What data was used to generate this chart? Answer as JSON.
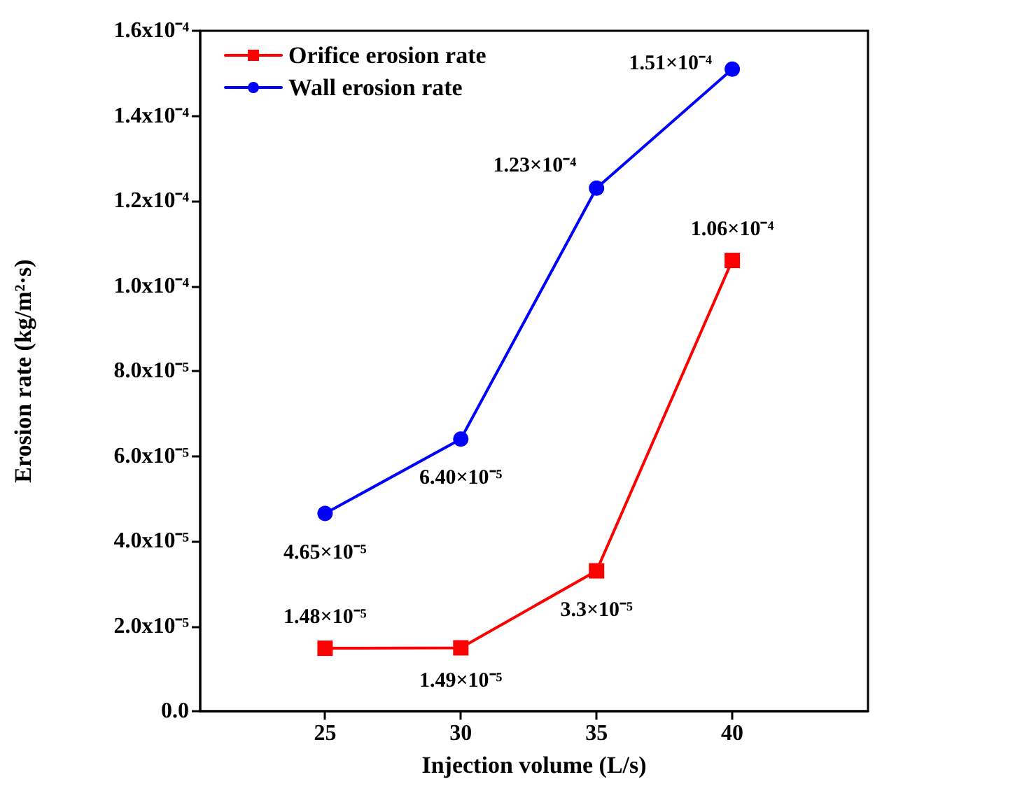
{
  "chart_data": {
    "type": "line",
    "xlabel": "Injection volume (L/s)",
    "ylabel": "Erosion rate (kg/m²·s)",
    "x": [
      25,
      30,
      35,
      40
    ],
    "xlim": [
      20.4,
      45
    ],
    "xticks": [
      25,
      30,
      35,
      40
    ],
    "ylim": [
      0,
      0.00016
    ],
    "yticks": [
      {
        "value": 0,
        "label": "0.0"
      },
      {
        "value": 2e-05,
        "label": "2.0x10⁻⁵"
      },
      {
        "value": 4e-05,
        "label": "4.0x10⁻⁵"
      },
      {
        "value": 6e-05,
        "label": "6.0x10⁻⁵"
      },
      {
        "value": 8e-05,
        "label": "8.0x10⁻⁵"
      },
      {
        "value": 0.0001,
        "label": "1.0x10⁻⁴"
      },
      {
        "value": 0.00012,
        "label": "1.2x10⁻⁴"
      },
      {
        "value": 0.00014,
        "label": "1.4x10⁻⁴"
      },
      {
        "value": 0.00016,
        "label": "1.6x10⁻⁴"
      }
    ],
    "series": [
      {
        "name": "Orifice erosion rate",
        "color": "#ff0000",
        "marker": "square",
        "values": [
          1.48e-05,
          1.49e-05,
          3.3e-05,
          0.000106
        ],
        "value_labels": [
          "1.48×10⁻⁵",
          "1.49×10⁻⁵",
          "3.3×10⁻⁵",
          "1.06×10⁻⁴"
        ]
      },
      {
        "name": "Wall erosion rate",
        "color": "#0000ff",
        "marker": "circle",
        "values": [
          4.65e-05,
          6.4e-05,
          0.000123,
          0.000151
        ],
        "value_labels": [
          "4.65×10⁻⁵",
          "6.40×10⁻⁵",
          "1.23×10⁻⁴",
          "1.51×10⁻⁴"
        ]
      }
    ],
    "legend": "top left",
    "grid": false,
    "line_style": "solid"
  }
}
